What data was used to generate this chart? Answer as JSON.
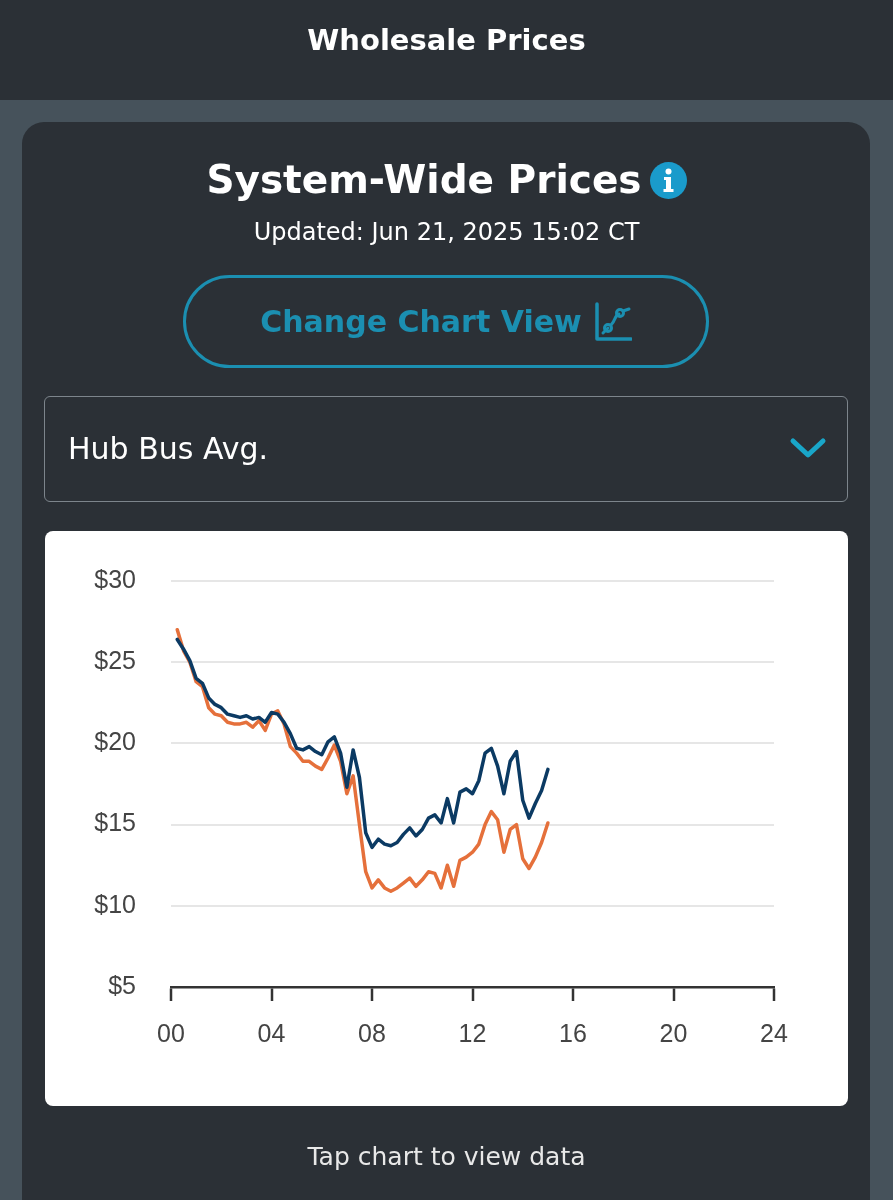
{
  "chart_data": {
    "type": "line",
    "title": "System-Wide Prices",
    "subtitle": "Updated: Jun 21, 2025 15:02 CT",
    "annotations": [
      "Wholesale Prices",
      "Change Chart View",
      "Hub Bus Avg.",
      "Tap chart to view data"
    ],
    "x": [
      0.25,
      0.5,
      0.75,
      1,
      1.25,
      1.5,
      1.75,
      2,
      2.25,
      2.5,
      2.75,
      3,
      3.25,
      3.5,
      3.75,
      4,
      4.25,
      4.5,
      4.75,
      5,
      5.25,
      5.5,
      5.75,
      6,
      6.25,
      6.5,
      6.75,
      7,
      7.25,
      7.5,
      7.75,
      8,
      8.25,
      8.5,
      8.75,
      9,
      9.25,
      9.5,
      9.75,
      10,
      10.25,
      10.5,
      10.75,
      11,
      11.25,
      11.5,
      11.75,
      12,
      12.25,
      12.5,
      12.75,
      13,
      13.25,
      13.5,
      13.75,
      14,
      14.25,
      14.5,
      14.75,
      15
    ],
    "series": [
      {
        "color": "#0b3a63",
        "values": [
          26.4,
          25.8,
          25.1,
          24.0,
          23.7,
          22.8,
          22.4,
          22.2,
          21.8,
          21.7,
          21.6,
          21.7,
          21.5,
          21.6,
          21.3,
          21.9,
          21.8,
          21.3,
          20.6,
          19.7,
          19.6,
          19.8,
          19.5,
          19.3,
          20.1,
          20.4,
          19.4,
          17.3,
          19.6,
          17.9,
          14.5,
          13.6,
          14.1,
          13.8,
          13.7,
          13.9,
          14.4,
          14.8,
          14.3,
          14.7,
          15.4,
          15.6,
          15.1,
          16.6,
          15.1,
          17.0,
          17.2,
          16.9,
          17.7,
          19.4,
          19.7,
          18.6,
          16.9,
          18.9,
          19.5,
          16.5,
          15.4,
          16.3,
          17.1,
          18.4
        ]
      },
      {
        "color": "#e5703b",
        "values": [
          27.0,
          25.7,
          25.0,
          23.8,
          23.5,
          22.2,
          21.8,
          21.7,
          21.3,
          21.2,
          21.2,
          21.3,
          21.0,
          21.4,
          20.8,
          21.8,
          22.0,
          21.2,
          19.8,
          19.4,
          18.9,
          18.9,
          18.6,
          18.4,
          19.1,
          19.9,
          18.9,
          16.9,
          18.0,
          15.0,
          12.1,
          11.1,
          11.6,
          11.1,
          10.9,
          11.1,
          11.4,
          11.7,
          11.2,
          11.6,
          12.1,
          12.0,
          11.1,
          12.5,
          11.2,
          12.8,
          13.0,
          13.3,
          13.8,
          15.0,
          15.8,
          15.3,
          13.3,
          14.7,
          15.0,
          12.9,
          12.3,
          13.0,
          13.9,
          15.1
        ]
      }
    ],
    "xlim": [
      0,
      24
    ],
    "xticks": [
      {
        "value": 0,
        "label": "00"
      },
      {
        "value": 4,
        "label": "04"
      },
      {
        "value": 8,
        "label": "08"
      },
      12,
      16,
      20,
      24
    ],
    "ylim": [
      5,
      30
    ],
    "yticks": [
      {
        "value": 5,
        "label": "$5"
      },
      {
        "value": 10,
        "label": "$10"
      },
      {
        "value": 15,
        "label": "$15"
      },
      {
        "value": 20,
        "label": "$20"
      },
      {
        "value": 25,
        "label": "$25"
      },
      {
        "value": 30,
        "label": "$30"
      }
    ],
    "grid": "y",
    "marker": "none"
  }
}
